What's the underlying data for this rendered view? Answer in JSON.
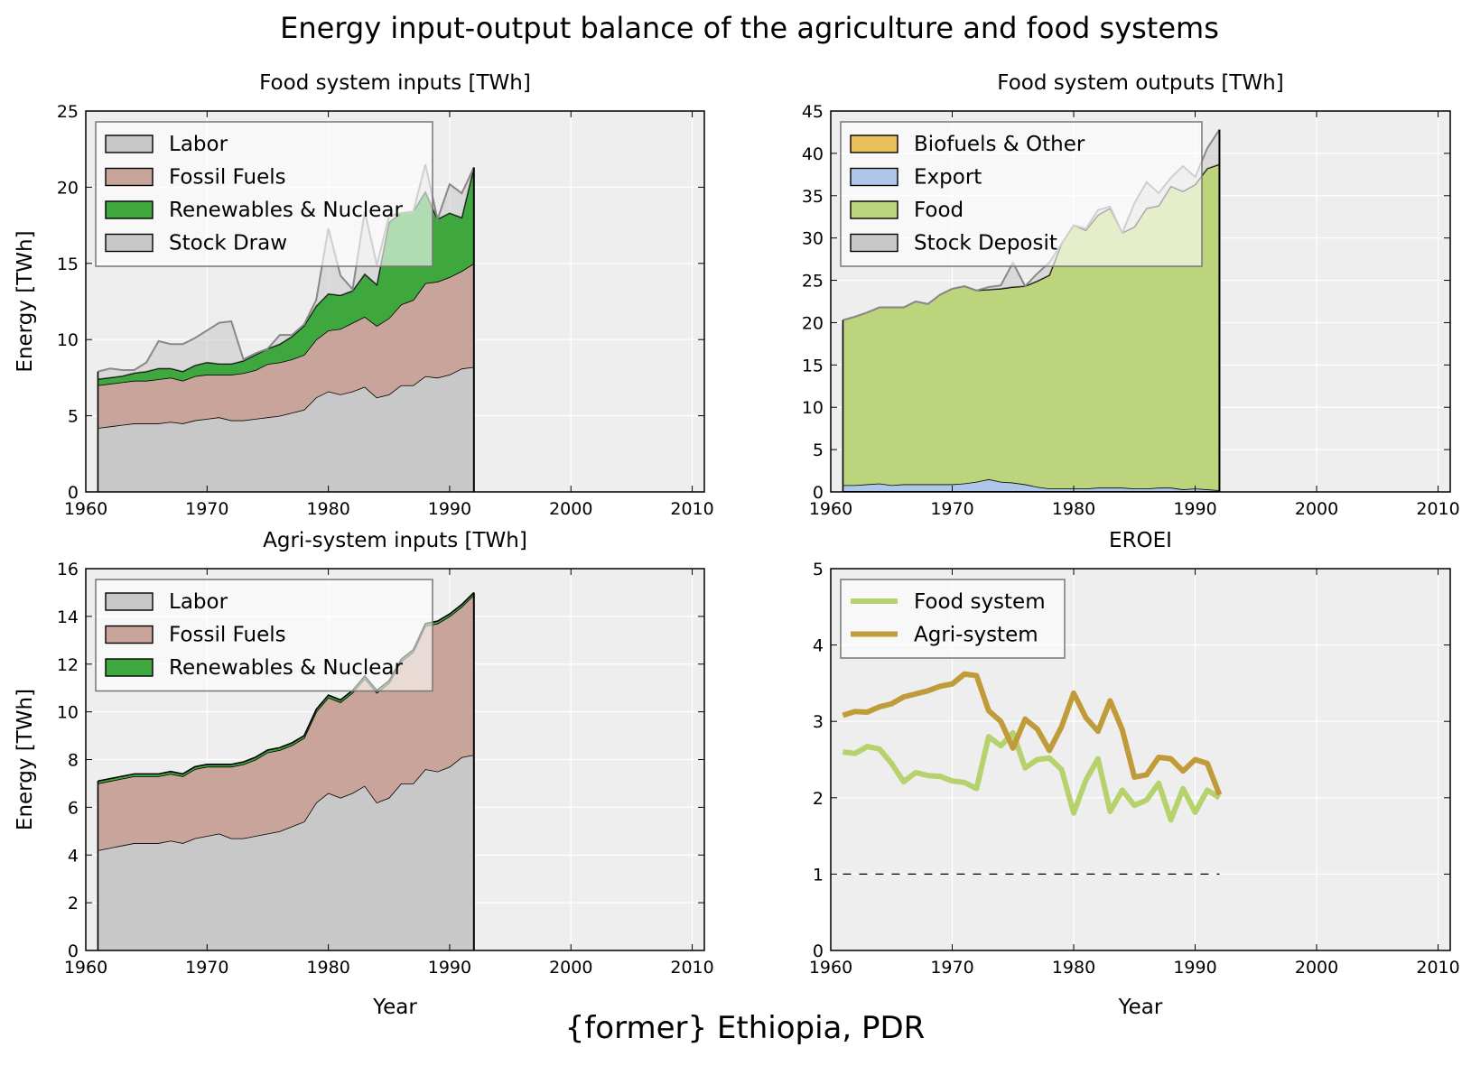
{
  "figure": {
    "title": "Energy input-output balance of the agriculture and food systems",
    "footer": "{former} Ethiopia, PDR"
  },
  "chart_data": [
    {
      "id": "food-inputs",
      "type": "area",
      "title": "Food system inputs [TWh]",
      "xlabel": "",
      "ylabel": "Energy [TWh]",
      "xlim": [
        1960,
        2011
      ],
      "ylim": [
        0,
        25
      ],
      "xticks": [
        1960,
        1970,
        1980,
        1990,
        2000,
        2010
      ],
      "yticks": [
        0,
        5,
        10,
        15,
        20,
        25
      ],
      "grid": true,
      "legend_position": "top-left",
      "x": [
        1961,
        1962,
        1963,
        1964,
        1965,
        1966,
        1967,
        1968,
        1969,
        1970,
        1971,
        1972,
        1973,
        1974,
        1975,
        1976,
        1977,
        1978,
        1979,
        1980,
        1981,
        1982,
        1983,
        1984,
        1985,
        1986,
        1987,
        1988,
        1989,
        1990,
        1991,
        1992
      ],
      "series": [
        {
          "name": "Labor",
          "color": "#c8c8c8",
          "values": [
            4.2,
            4.3,
            4.4,
            4.5,
            4.5,
            4.5,
            4.6,
            4.5,
            4.7,
            4.8,
            4.9,
            4.7,
            4.7,
            4.8,
            4.9,
            5.0,
            5.2,
            5.4,
            6.2,
            6.6,
            6.4,
            6.6,
            6.9,
            6.2,
            6.4,
            7.0,
            7.0,
            7.6,
            7.5,
            7.7,
            8.1,
            8.2
          ]
        },
        {
          "name": "Fossil Fuels",
          "color": "#c8a49a",
          "values": [
            2.8,
            2.8,
            2.8,
            2.8,
            2.8,
            2.9,
            2.9,
            2.8,
            2.9,
            2.9,
            2.8,
            3.0,
            3.1,
            3.2,
            3.5,
            3.5,
            3.5,
            3.6,
            3.8,
            4.0,
            4.3,
            4.5,
            4.6,
            4.7,
            5.0,
            5.3,
            5.6,
            6.1,
            6.3,
            6.4,
            6.4,
            6.8
          ]
        },
        {
          "name": "Renewables & Nuclear",
          "color": "#3ea73e",
          "values": [
            0.4,
            0.4,
            0.4,
            0.5,
            0.6,
            0.7,
            0.6,
            0.6,
            0.7,
            0.8,
            0.7,
            0.7,
            0.8,
            1.0,
            1.0,
            1.2,
            1.5,
            1.9,
            2.2,
            2.4,
            2.2,
            2.1,
            2.8,
            2.7,
            6.3,
            6.0,
            5.8,
            6.0,
            4.1,
            4.2,
            3.5,
            6.3
          ]
        },
        {
          "name": "Stock Draw",
          "color": "#c8c8c8",
          "values": [
            0.5,
            0.6,
            0.4,
            0.2,
            0.6,
            1.8,
            1.6,
            1.8,
            1.8,
            2.1,
            2.7,
            2.8,
            0.1,
            0.1,
            0.0,
            0.6,
            0.1,
            0.1,
            0.4,
            4.3,
            1.3,
            0.1,
            4.1,
            1.3,
            0.4,
            0.0,
            0.0,
            1.8,
            0.0,
            1.9,
            1.6,
            0.0
          ]
        }
      ]
    },
    {
      "id": "food-outputs",
      "type": "area",
      "title": "Food system outputs [TWh]",
      "xlabel": "",
      "ylabel": "",
      "xlim": [
        1960,
        2011
      ],
      "ylim": [
        0,
        45
      ],
      "xticks": [
        1960,
        1970,
        1980,
        1990,
        2000,
        2010
      ],
      "yticks": [
        0,
        5,
        10,
        15,
        20,
        25,
        30,
        35,
        40,
        45
      ],
      "grid": true,
      "legend_position": "top-left",
      "x": [
        1961,
        1962,
        1963,
        1964,
        1965,
        1966,
        1967,
        1968,
        1969,
        1970,
        1971,
        1972,
        1973,
        1974,
        1975,
        1976,
        1977,
        1978,
        1979,
        1980,
        1981,
        1982,
        1983,
        1984,
        1985,
        1986,
        1987,
        1988,
        1989,
        1990,
        1991,
        1992
      ],
      "series": [
        {
          "name": "Biofuels & Other",
          "color": "#e8bf58",
          "values": [
            0.1,
            0.1,
            0.1,
            0.1,
            0.1,
            0.1,
            0.1,
            0.1,
            0.1,
            0.1,
            0.1,
            0.1,
            0.1,
            0.1,
            0.1,
            0.1,
            0.1,
            0.1,
            0.1,
            0.1,
            0.1,
            0.1,
            0.1,
            0.1,
            0.1,
            0.1,
            0.1,
            0.1,
            0.1,
            0.1,
            0.1,
            0.1
          ]
        },
        {
          "name": "Export",
          "color": "#aec6e8",
          "values": [
            0.7,
            0.7,
            0.8,
            0.9,
            0.7,
            0.8,
            0.8,
            0.8,
            0.8,
            0.8,
            0.9,
            1.1,
            1.4,
            1.1,
            1.0,
            0.8,
            0.5,
            0.3,
            0.3,
            0.3,
            0.3,
            0.4,
            0.4,
            0.4,
            0.3,
            0.3,
            0.4,
            0.4,
            0.2,
            0.3,
            0.2,
            0.1
          ]
        },
        {
          "name": "Food",
          "color": "#bcd47b",
          "values": [
            19.5,
            19.9,
            20.3,
            20.8,
            21.0,
            20.9,
            21.6,
            21.3,
            22.4,
            23.1,
            23.3,
            22.6,
            22.4,
            22.8,
            23.1,
            23.4,
            24.3,
            25.2,
            28.9,
            31.1,
            30.5,
            32.2,
            33.0,
            30.1,
            30.9,
            33.1,
            33.3,
            35.6,
            35.2,
            35.9,
            37.9,
            38.5
          ]
        },
        {
          "name": "Stock Deposit",
          "color": "#c8c8c8",
          "values": [
            0.0,
            0.0,
            0.0,
            0.0,
            0.0,
            0.0,
            0.0,
            0.0,
            0.0,
            0.0,
            0.0,
            0.0,
            0.3,
            0.4,
            2.9,
            0.0,
            0.9,
            1.5,
            0.0,
            0.0,
            0.2,
            0.6,
            0.2,
            0.0,
            2.8,
            3.1,
            1.5,
            1.0,
            3.0,
            0.9,
            2.4,
            4.1
          ]
        }
      ]
    },
    {
      "id": "agri-inputs",
      "type": "area",
      "title": "Agri-system inputs [TWh]",
      "xlabel": "Year",
      "ylabel": "Energy [TWh]",
      "xlim": [
        1960,
        2011
      ],
      "ylim": [
        0,
        16
      ],
      "xticks": [
        1960,
        1970,
        1980,
        1990,
        2000,
        2010
      ],
      "yticks": [
        0,
        2,
        4,
        6,
        8,
        10,
        12,
        14,
        16
      ],
      "grid": true,
      "legend_position": "top-left",
      "x": [
        1961,
        1962,
        1963,
        1964,
        1965,
        1966,
        1967,
        1968,
        1969,
        1970,
        1971,
        1972,
        1973,
        1974,
        1975,
        1976,
        1977,
        1978,
        1979,
        1980,
        1981,
        1982,
        1983,
        1984,
        1985,
        1986,
        1987,
        1988,
        1989,
        1990,
        1991,
        1992
      ],
      "series": [
        {
          "name": "Labor",
          "color": "#c8c8c8",
          "values": [
            4.2,
            4.3,
            4.4,
            4.5,
            4.5,
            4.5,
            4.6,
            4.5,
            4.7,
            4.8,
            4.9,
            4.7,
            4.7,
            4.8,
            4.9,
            5.0,
            5.2,
            5.4,
            6.2,
            6.6,
            6.4,
            6.6,
            6.9,
            6.2,
            6.4,
            7.0,
            7.0,
            7.6,
            7.5,
            7.7,
            8.1,
            8.2
          ]
        },
        {
          "name": "Fossil Fuels",
          "color": "#c8a49a",
          "values": [
            2.8,
            2.8,
            2.8,
            2.8,
            2.8,
            2.8,
            2.8,
            2.8,
            2.9,
            2.9,
            2.8,
            3.0,
            3.1,
            3.2,
            3.4,
            3.4,
            3.4,
            3.5,
            3.8,
            4.0,
            4.0,
            4.2,
            4.5,
            4.6,
            4.8,
            5.1,
            5.5,
            6.0,
            6.2,
            6.3,
            6.3,
            6.7
          ]
        },
        {
          "name": "Renewables & Nuclear",
          "color": "#3ea73e",
          "values": [
            0.1,
            0.1,
            0.1,
            0.1,
            0.1,
            0.1,
            0.1,
            0.1,
            0.1,
            0.1,
            0.1,
            0.1,
            0.1,
            0.1,
            0.1,
            0.1,
            0.1,
            0.1,
            0.1,
            0.1,
            0.1,
            0.1,
            0.1,
            0.1,
            0.1,
            0.1,
            0.1,
            0.1,
            0.1,
            0.1,
            0.1,
            0.1
          ]
        }
      ]
    },
    {
      "id": "eroei",
      "type": "line",
      "title": "EROEI",
      "xlabel": "Year",
      "ylabel": "",
      "xlim": [
        1960,
        2011
      ],
      "ylim": [
        0,
        5
      ],
      "xticks": [
        1960,
        1970,
        1980,
        1990,
        2000,
        2010
      ],
      "yticks": [
        0,
        1,
        2,
        3,
        4,
        5
      ],
      "grid": true,
      "legend_position": "top-left",
      "x": [
        1961,
        1962,
        1963,
        1964,
        1965,
        1966,
        1967,
        1968,
        1969,
        1970,
        1971,
        1972,
        1973,
        1974,
        1975,
        1976,
        1977,
        1978,
        1979,
        1980,
        1981,
        1982,
        1983,
        1984,
        1985,
        1986,
        1987,
        1988,
        1989,
        1990,
        1991,
        1992
      ],
      "reference_line": {
        "y": 1,
        "x": [
          1961,
          1992
        ],
        "style": "dashed"
      },
      "series": [
        {
          "name": "Food system",
          "color": "#b5d26c",
          "values": [
            2.6,
            2.58,
            2.67,
            2.64,
            2.45,
            2.21,
            2.33,
            2.29,
            2.28,
            2.22,
            2.2,
            2.12,
            2.8,
            2.68,
            2.85,
            2.39,
            2.5,
            2.52,
            2.37,
            1.8,
            2.23,
            2.51,
            1.82,
            2.1,
            1.9,
            1.97,
            2.19,
            1.71,
            2.12,
            1.81,
            2.1,
            2.0
          ]
        },
        {
          "name": "Agri-system",
          "color": "#bf9b39",
          "values": [
            3.08,
            3.13,
            3.12,
            3.19,
            3.23,
            3.32,
            3.36,
            3.4,
            3.46,
            3.49,
            3.62,
            3.6,
            3.14,
            3.0,
            2.65,
            3.03,
            2.9,
            2.62,
            2.93,
            3.37,
            3.05,
            2.87,
            3.27,
            2.89,
            2.27,
            2.3,
            2.53,
            2.51,
            2.35,
            2.5,
            2.45,
            2.04
          ]
        }
      ]
    }
  ]
}
